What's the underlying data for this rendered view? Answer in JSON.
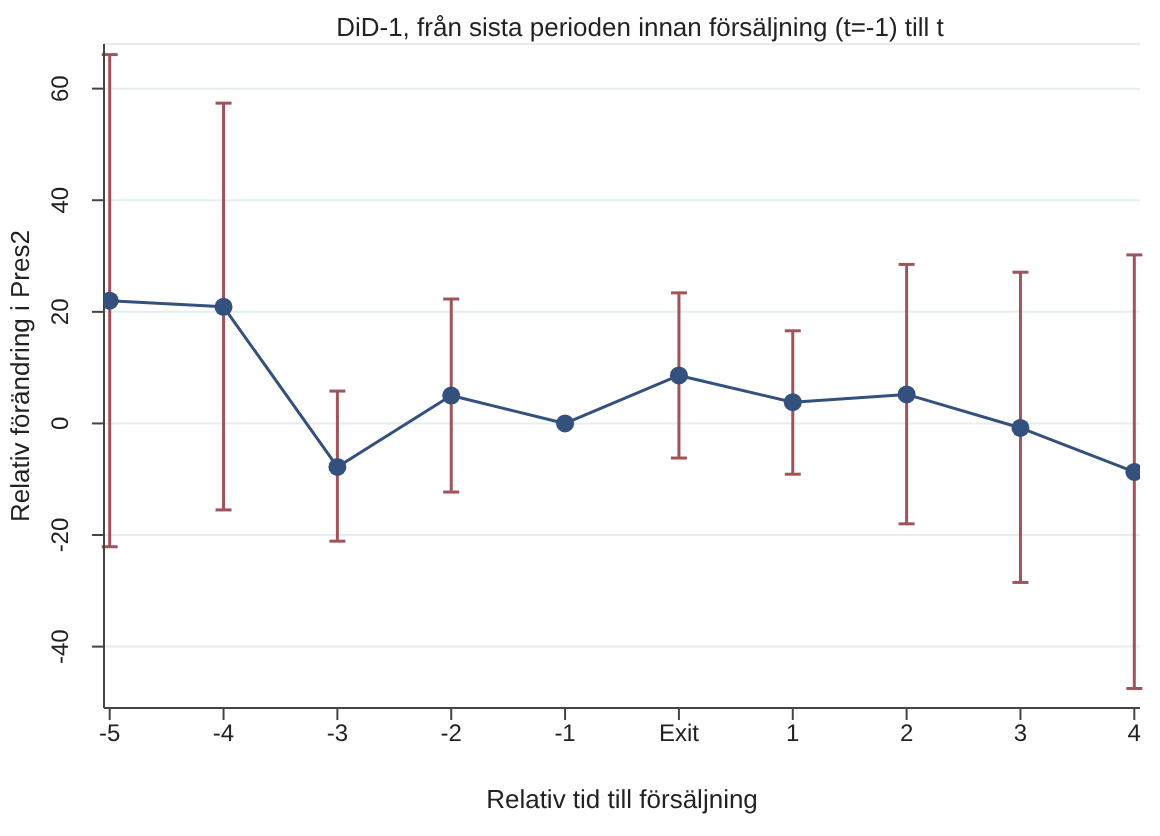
{
  "chart_data": {
    "type": "line",
    "title": "DiD-1, från sista perioden innan försäljning (t=-1) till t",
    "xlabel": "Relativ tid till försäljning",
    "ylabel": "Relativ förändring i Pres2",
    "categories": [
      "-5",
      "-4",
      "-3",
      "-2",
      "-1",
      "Exit",
      "1",
      "2",
      "3",
      "4"
    ],
    "series": [
      {
        "color": "#34507c",
        "values": [
          22.0,
          20.9,
          -7.8,
          5.0,
          0,
          8.6,
          3.8,
          5.2,
          -0.8,
          -8.7
        ],
        "errors": [
          [
            -22.1,
            66.1
          ],
          [
            -15.5,
            57.4
          ],
          [
            -21.1,
            5.8
          ],
          [
            -12.3,
            22.3
          ],
          null,
          [
            -6.2,
            23.4
          ],
          [
            -9.1,
            16.6
          ],
          [
            -18.0,
            28.5
          ],
          [
            -28.5,
            27.1
          ],
          [
            -47.5,
            30.2
          ]
        ]
      }
    ],
    "ylim": [
      -51,
      68
    ],
    "yticks": [
      -40,
      -20,
      0,
      20,
      40,
      60
    ],
    "grid": "y",
    "marker": "circle",
    "line_style": "solid",
    "legend": false
  }
}
